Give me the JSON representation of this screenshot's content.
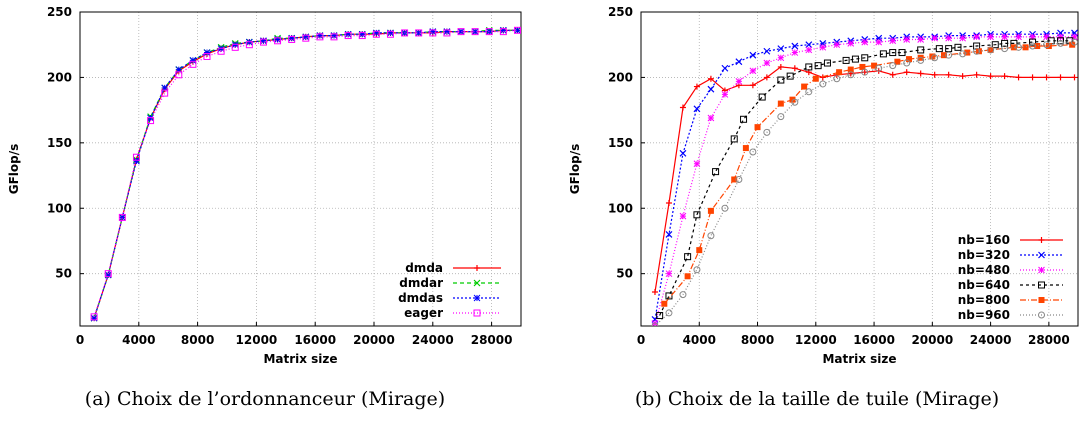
{
  "chart_data": [
    {
      "type": "line",
      "title": "",
      "xlabel": "Matrix size",
      "ylabel": "GFlop/s",
      "caption": "(a) Choix de l’ordonnanceur (Mirage)",
      "xlim": [
        0,
        30000
      ],
      "ylim": [
        10,
        250
      ],
      "xticks": [
        0,
        4000,
        8000,
        12000,
        16000,
        20000,
        24000,
        28000
      ],
      "yticks": [
        50,
        100,
        150,
        200,
        250
      ],
      "grid": true,
      "legend_position": "bottom-right",
      "x": [
        960,
        1920,
        2880,
        3840,
        4800,
        5760,
        6720,
        7680,
        8640,
        9600,
        10560,
        11520,
        12480,
        13440,
        14400,
        15360,
        16320,
        17280,
        18240,
        19200,
        20160,
        21120,
        22080,
        23040,
        24000,
        24960,
        25920,
        26880,
        27840,
        28800,
        29760
      ],
      "series": [
        {
          "name": "dmda",
          "color": "#ff0000",
          "marker": "plus",
          "dash": "",
          "values": [
            16,
            49,
            93,
            137,
            169,
            191,
            205,
            212,
            218,
            222,
            225,
            227,
            228,
            229,
            230,
            231,
            232,
            232,
            233,
            233,
            233,
            234,
            234,
            234,
            234,
            235,
            235,
            235,
            235,
            236,
            236
          ]
        },
        {
          "name": "dmdar",
          "color": "#00cc00",
          "marker": "cross",
          "dash": "4,3",
          "values": [
            16,
            49,
            93,
            137,
            170,
            192,
            206,
            213,
            219,
            223,
            226,
            227,
            228,
            230,
            230,
            231,
            232,
            232,
            233,
            233,
            234,
            234,
            234,
            234,
            235,
            235,
            235,
            235,
            236,
            236,
            236
          ]
        },
        {
          "name": "dmdas",
          "color": "#0000ff",
          "marker": "star",
          "dash": "2,2",
          "values": [
            16,
            49,
            93,
            136,
            169,
            192,
            206,
            213,
            219,
            222,
            225,
            227,
            228,
            229,
            230,
            231,
            232,
            232,
            233,
            233,
            234,
            234,
            234,
            234,
            235,
            235,
            235,
            235,
            235,
            236,
            236
          ]
        },
        {
          "name": "eager",
          "color": "#ff00ff",
          "marker": "square",
          "dash": "1,2",
          "values": [
            17,
            50,
            93,
            139,
            167,
            188,
            202,
            210,
            216,
            220,
            223,
            225,
            227,
            228,
            229,
            230,
            231,
            231,
            232,
            232,
            233,
            233,
            234,
            234,
            234,
            234,
            235,
            235,
            235,
            235,
            236
          ]
        }
      ]
    },
    {
      "type": "line",
      "title": "",
      "xlabel": "Matrix size",
      "ylabel": "GFlop/s",
      "caption": "(b) Choix de la taille de tuile (Mirage)",
      "xlim": [
        0,
        30000
      ],
      "ylim": [
        10,
        250
      ],
      "xticks": [
        0,
        4000,
        8000,
        12000,
        16000,
        20000,
        24000,
        28000
      ],
      "yticks": [
        50,
        100,
        150,
        200,
        250
      ],
      "grid": true,
      "legend_position": "bottom-right",
      "series": [
        {
          "name": "nb=160",
          "color": "#ff0000",
          "marker": "plus",
          "dash": "",
          "x": [
            960,
            1920,
            2880,
            3840,
            4800,
            5760,
            6720,
            7680,
            8640,
            9600,
            10560,
            11520,
            12480,
            13440,
            14400,
            15360,
            16320,
            17280,
            18240,
            19200,
            20160,
            21120,
            22080,
            23040,
            24000,
            24960,
            25920,
            26880,
            27840,
            28800,
            29760
          ],
          "values": [
            36,
            104,
            177,
            193,
            199,
            190,
            194,
            194,
            200,
            208,
            207,
            204,
            200,
            202,
            203,
            204,
            205,
            202,
            204,
            203,
            202,
            202,
            201,
            202,
            201,
            201,
            200,
            200,
            200,
            200,
            200
          ]
        },
        {
          "name": "nb=320",
          "color": "#0000ff",
          "marker": "cross",
          "dash": "2,2",
          "x": [
            960,
            1920,
            2880,
            3840,
            4800,
            5760,
            6720,
            7680,
            8640,
            9600,
            10560,
            11520,
            12480,
            13440,
            14400,
            15360,
            16320,
            17280,
            18240,
            19200,
            20160,
            21120,
            22080,
            23040,
            24000,
            24960,
            25920,
            26880,
            27840,
            28800,
            29760
          ],
          "values": [
            15,
            80,
            142,
            176,
            191,
            207,
            212,
            217,
            220,
            222,
            224,
            225,
            226,
            227,
            228,
            229,
            230,
            230,
            231,
            231,
            231,
            232,
            232,
            232,
            233,
            233,
            233,
            233,
            233,
            234,
            234
          ]
        },
        {
          "name": "nb=480",
          "color": "#ff00ff",
          "marker": "star",
          "dash": "1,2",
          "x": [
            960,
            1920,
            2880,
            3840,
            4800,
            5760,
            6720,
            7680,
            8640,
            9600,
            10560,
            11520,
            12480,
            13440,
            14400,
            15360,
            16320,
            17280,
            18240,
            19200,
            20160,
            21120,
            22080,
            23040,
            24000,
            24960,
            25920,
            26880,
            27840,
            28800,
            29760
          ],
          "values": [
            12,
            50,
            94,
            134,
            169,
            187,
            197,
            205,
            211,
            215,
            219,
            221,
            223,
            225,
            226,
            227,
            227,
            228,
            229,
            229,
            230,
            230,
            230,
            231,
            231,
            231,
            231,
            231,
            231,
            231,
            231
          ]
        },
        {
          "name": "nb=640",
          "color": "#000000",
          "marker": "square",
          "dash": "3,3",
          "x": [
            1280,
            1920,
            3200,
            3840,
            5120,
            6400,
            7040,
            8320,
            9600,
            10240,
            11520,
            12160,
            12800,
            14080,
            14720,
            15360,
            16640,
            17280,
            17920,
            19200,
            20480,
            21120,
            21760,
            23040,
            24320,
            24960,
            25600,
            26880,
            28160,
            28800,
            29440
          ],
          "values": [
            18,
            33,
            63,
            95,
            128,
            153,
            168,
            185,
            198,
            201,
            208,
            209,
            211,
            213,
            214,
            215,
            218,
            219,
            219,
            221,
            222,
            222,
            223,
            224,
            225,
            226,
            226,
            227,
            228,
            228,
            228
          ]
        },
        {
          "name": "nb=800",
          "color": "#ff4400",
          "marker": "filledsquare",
          "dash": "6,2,1,2",
          "x": [
            1600,
            3200,
            4000,
            4800,
            6400,
            7200,
            8000,
            9600,
            10400,
            11200,
            12000,
            13600,
            14400,
            15200,
            16000,
            17600,
            18400,
            19200,
            20000,
            20800,
            22400,
            23200,
            24000,
            25600,
            26400,
            27200,
            28000,
            29600
          ],
          "values": [
            27,
            48,
            68,
            98,
            122,
            146,
            162,
            180,
            183,
            193,
            199,
            204,
            206,
            208,
            209,
            212,
            214,
            215,
            216,
            217,
            219,
            220,
            221,
            223,
            223,
            224,
            224,
            225
          ]
        },
        {
          "name": "nb=960",
          "color": "#888888",
          "marker": "circle",
          "dash": "1,2",
          "x": [
            960,
            1920,
            2880,
            3840,
            4800,
            5760,
            6720,
            7680,
            8640,
            9600,
            10560,
            11520,
            12480,
            13440,
            14400,
            15360,
            16320,
            17280,
            18240,
            19200,
            20160,
            21120,
            22080,
            23040,
            24000,
            24960,
            25920,
            26880,
            27840,
            28800,
            29760
          ],
          "values": [
            10,
            20,
            34,
            53,
            79,
            100,
            122,
            143,
            158,
            170,
            181,
            189,
            195,
            199,
            202,
            204,
            207,
            209,
            211,
            213,
            215,
            217,
            218,
            220,
            221,
            222,
            223,
            224,
            225,
            226,
            227
          ]
        }
      ]
    }
  ]
}
